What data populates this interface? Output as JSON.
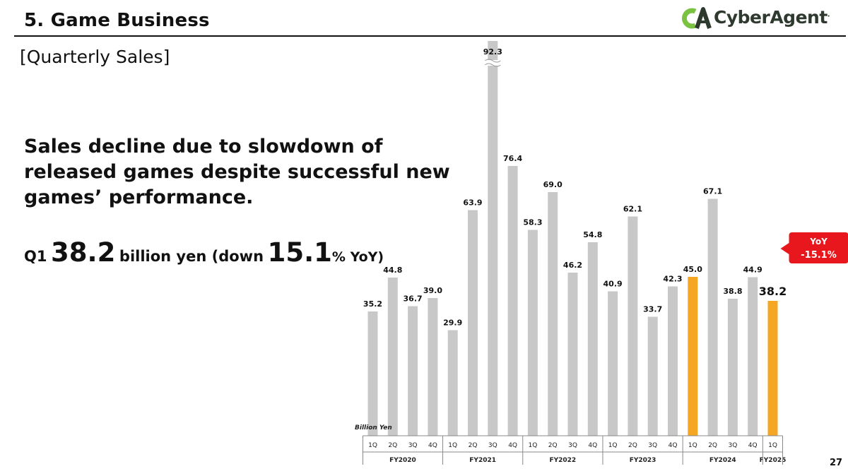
{
  "header": {
    "title": "5.  Game Business",
    "logo_text": "CyberAgent",
    "logo_dot": "."
  },
  "section_label": "[Quarterly Sales]",
  "headline": "Sales decline due to slowdown of released games despite successful new games’ performance.",
  "summary": {
    "quarter": "Q1",
    "value": "38.2",
    "unit_text": "billion yen (down",
    "pct": "15.1",
    "pct_suffix": "% YoY)"
  },
  "page_number": "27",
  "colors": {
    "bar_default": "#c8c8c8",
    "bar_highlight": "#f5a623",
    "callout_bg": "#e8161d",
    "logo_green": "#7cc242",
    "logo_dark": "#2f3a2f"
  },
  "chart_data": {
    "type": "bar",
    "unit_label": "Billion Yen",
    "categories": [
      "1Q",
      "2Q",
      "3Q",
      "4Q",
      "1Q",
      "2Q",
      "3Q",
      "4Q",
      "1Q",
      "2Q",
      "3Q",
      "4Q",
      "1Q",
      "2Q",
      "3Q",
      "4Q",
      "1Q",
      "2Q",
      "3Q",
      "4Q",
      "1Q"
    ],
    "fiscal_years": [
      {
        "label": "FY2020",
        "count": 4
      },
      {
        "label": "FY2021",
        "count": 4
      },
      {
        "label": "FY2022",
        "count": 4
      },
      {
        "label": "FY2023",
        "count": 4
      },
      {
        "label": "FY2024",
        "count": 4
      },
      {
        "label": "FY2025",
        "count": 1
      }
    ],
    "values": [
      35.2,
      44.8,
      36.7,
      39.0,
      29.9,
      63.9,
      92.3,
      76.4,
      58.3,
      69.0,
      46.2,
      54.8,
      40.9,
      62.1,
      33.7,
      42.3,
      45.0,
      67.1,
      38.8,
      44.9,
      38.2
    ],
    "labels": [
      "35.2",
      "44.8",
      "36.7",
      "39.0",
      "29.9",
      "63.9",
      "92.3",
      "76.4",
      "58.3",
      "69.0",
      "46.2",
      "54.8",
      "40.9",
      "62.1",
      "33.7",
      "42.3",
      "45.0",
      "67.1",
      "38.8",
      "44.9",
      "38.2"
    ],
    "highlighted": [
      16,
      20
    ],
    "axis_break_index": 6,
    "callout": {
      "index": 20,
      "line1": "YoY",
      "line2": "-15.1%"
    }
  }
}
